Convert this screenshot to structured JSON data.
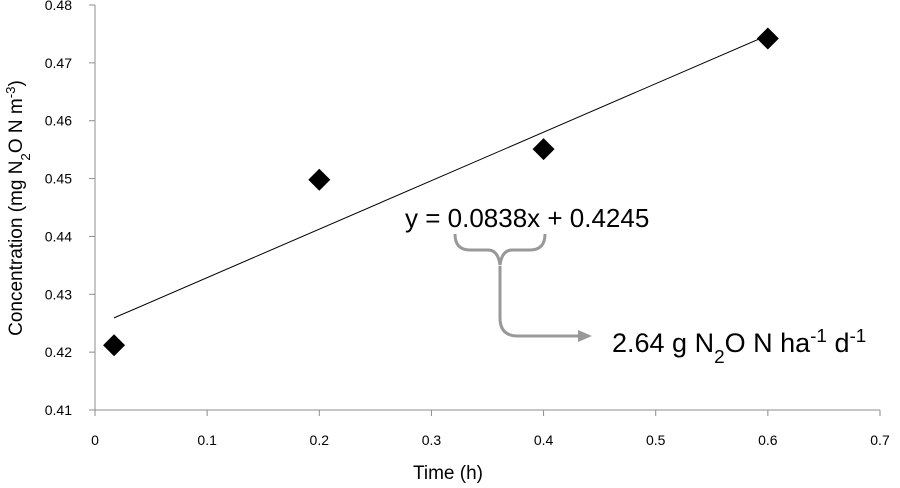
{
  "chart_data": {
    "type": "scatter",
    "title": "",
    "xlabel": "Time (h)",
    "ylabel": {
      "parts": [
        {
          "text": "Concentration (mg N",
          "shift": "none"
        },
        {
          "text": "2",
          "shift": "sub"
        },
        {
          "text": "O N m",
          "shift": "none"
        },
        {
          "text": "-3",
          "shift": "super"
        },
        {
          "text": ")",
          "shift": "none"
        }
      ]
    },
    "xlim": [
      0,
      0.7
    ],
    "ylim": [
      0.41,
      0.48
    ],
    "xticks": [
      "0",
      "0.1",
      "0.2",
      "0.3",
      "0.4",
      "0.5",
      "0.6",
      "0.7"
    ],
    "yticks": [
      "0.41",
      "0.42",
      "0.43",
      "0.44",
      "0.45",
      "0.46",
      "0.47",
      "0.48"
    ],
    "grid": false,
    "marker": "diamond",
    "marker_color": "#000000",
    "points": [
      {
        "x": 0.017,
        "y": 0.4212
      },
      {
        "x": 0.2,
        "y": 0.4498
      },
      {
        "x": 0.4,
        "y": 0.4551
      },
      {
        "x": 0.6,
        "y": 0.4742
      }
    ],
    "trendline": {
      "slope": 0.0838,
      "intercept": 0.4245,
      "x_range": [
        0.017,
        0.6
      ]
    },
    "equation_label": "y = 0.0838x + 0.4245",
    "rate_label": {
      "parts": [
        {
          "text": "2.64 g N",
          "shift": "none"
        },
        {
          "text": "2",
          "shift": "sub"
        },
        {
          "text": "O N ha",
          "shift": "none"
        },
        {
          "text": "-1",
          "shift": "super"
        },
        {
          "text": " d",
          "shift": "none"
        },
        {
          "text": "-1",
          "shift": "super"
        }
      ]
    },
    "annotation_color": "#999999"
  }
}
